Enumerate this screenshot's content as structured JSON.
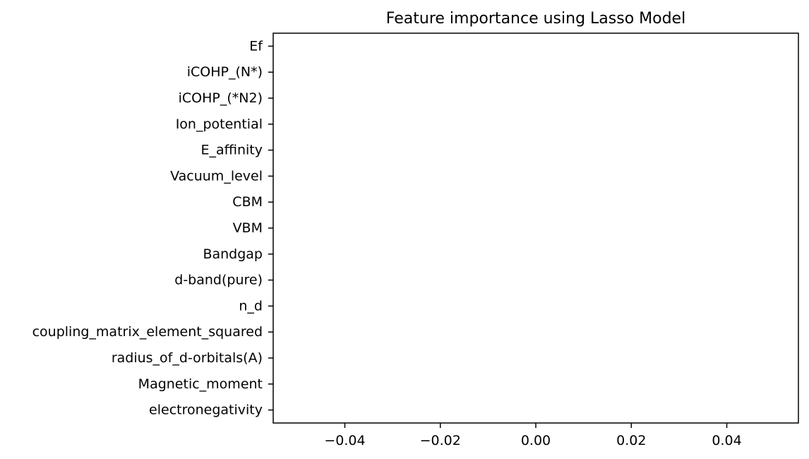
{
  "chart_data": {
    "type": "bar",
    "orientation": "horizontal",
    "title": "Feature importance using Lasso Model",
    "xlabel": "",
    "ylabel": "",
    "categories": [
      "electronegativity",
      "Magnetic_moment",
      "radius_of_d-orbitals(A)",
      "coupling_matrix_element_squared",
      "n_d",
      "d-band(pure)",
      "Bandgap",
      "VBM",
      "CBM",
      "Vacuum_level",
      "E_affinity",
      "Ion_potential",
      "iCOHP_(*N2)",
      "iCOHP_(N*)",
      "Ef"
    ],
    "values": [
      0,
      0,
      0,
      0,
      0,
      0,
      0,
      0,
      0,
      0,
      0,
      0,
      0,
      0,
      0
    ],
    "xlim": [
      -0.055,
      0.055
    ],
    "xticks": [
      -0.04,
      -0.02,
      0.0,
      0.02,
      0.04
    ],
    "xtick_labels": [
      "−0.04",
      "−0.02",
      "0.00",
      "0.02",
      "0.04"
    ],
    "grid": false,
    "legend": "none"
  }
}
